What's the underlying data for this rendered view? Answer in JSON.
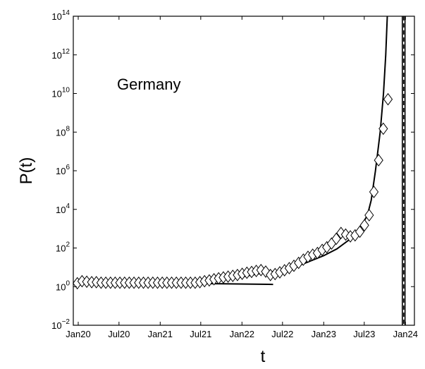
{
  "chart_data": {
    "type": "scatter",
    "title": "",
    "xlabel": "t",
    "ylabel": "P(t)",
    "annotation": "Germany",
    "x_scale": "time",
    "y_scale": "log",
    "xlim": [
      "2019-12-10",
      "2024-02-10"
    ],
    "ylim_exponent": [
      -2,
      14
    ],
    "x_ticks": [
      {
        "date": "2020-01-01",
        "label": "Jan20"
      },
      {
        "date": "2020-07-01",
        "label": "Jul20"
      },
      {
        "date": "2021-01-01",
        "label": "Jan21"
      },
      {
        "date": "2021-07-01",
        "label": "Jul21"
      },
      {
        "date": "2022-01-01",
        "label": "Jan22"
      },
      {
        "date": "2022-07-01",
        "label": "Jul22"
      },
      {
        "date": "2023-01-01",
        "label": "Jan23"
      },
      {
        "date": "2023-07-01",
        "label": "Jul23"
      },
      {
        "date": "2024-01-01",
        "label": "Jan24"
      }
    ],
    "y_ticks": [
      {
        "value": 0.01,
        "base": "10",
        "exp": "−2"
      },
      {
        "value": 1.0,
        "base": "10",
        "exp": "0"
      },
      {
        "value": 100.0,
        "base": "10",
        "exp": "2"
      },
      {
        "value": 10000.0,
        "base": "10",
        "exp": "4"
      },
      {
        "value": 1000000.0,
        "base": "10",
        "exp": "6"
      },
      {
        "value": 100000000.0,
        "base": "10",
        "exp": "8"
      },
      {
        "value": 10000000000.0,
        "base": "10",
        "exp": "10"
      },
      {
        "value": 1000000000000.0,
        "base": "10",
        "exp": "12"
      },
      {
        "value": 100000000000000.0,
        "base": "10",
        "exp": "14"
      }
    ],
    "markers": [
      [
        "2019-12-28",
        1.5
      ],
      [
        "2020-01-18",
        1.9
      ],
      [
        "2020-02-08",
        1.8
      ],
      [
        "2020-03-01",
        1.7
      ],
      [
        "2020-03-22",
        1.7
      ],
      [
        "2020-04-12",
        1.6
      ],
      [
        "2020-05-03",
        1.6
      ],
      [
        "2020-05-24",
        1.6
      ],
      [
        "2020-06-14",
        1.6
      ],
      [
        "2020-07-05",
        1.6
      ],
      [
        "2020-07-26",
        1.6
      ],
      [
        "2020-08-16",
        1.6
      ],
      [
        "2020-09-06",
        1.6
      ],
      [
        "2020-09-27",
        1.6
      ],
      [
        "2020-10-18",
        1.6
      ],
      [
        "2020-11-08",
        1.6
      ],
      [
        "2020-11-29",
        1.6
      ],
      [
        "2020-12-20",
        1.6
      ],
      [
        "2021-01-10",
        1.6
      ],
      [
        "2021-01-31",
        1.6
      ],
      [
        "2021-02-21",
        1.6
      ],
      [
        "2021-03-14",
        1.6
      ],
      [
        "2021-04-04",
        1.6
      ],
      [
        "2021-04-25",
        1.6
      ],
      [
        "2021-05-16",
        1.6
      ],
      [
        "2021-06-06",
        1.6
      ],
      [
        "2021-06-27",
        1.7
      ],
      [
        "2021-07-18",
        1.9
      ],
      [
        "2021-08-08",
        2.1
      ],
      [
        "2021-08-29",
        2.4
      ],
      [
        "2021-09-19",
        2.7
      ],
      [
        "2021-10-10",
        3.0
      ],
      [
        "2021-10-31",
        3.3
      ],
      [
        "2021-11-21",
        3.6
      ],
      [
        "2021-12-12",
        4.0
      ],
      [
        "2022-01-02",
        4.6
      ],
      [
        "2022-01-23",
        5.2
      ],
      [
        "2022-02-13",
        5.8
      ],
      [
        "2022-03-06",
        6.5
      ],
      [
        "2022-03-27",
        7.2
      ],
      [
        "2022-04-17",
        6.0
      ],
      [
        "2022-05-08",
        4.0
      ],
      [
        "2022-05-29",
        4.5
      ],
      [
        "2022-06-19",
        5.5
      ],
      [
        "2022-07-10",
        7
      ],
      [
        "2022-07-31",
        9
      ],
      [
        "2022-08-21",
        12
      ],
      [
        "2022-09-11",
        17
      ],
      [
        "2022-10-02",
        25
      ],
      [
        "2022-10-23",
        35
      ],
      [
        "2022-11-13",
        45
      ],
      [
        "2022-12-04",
        55
      ],
      [
        "2022-12-25",
        80
      ],
      [
        "2023-01-15",
        110
      ],
      [
        "2023-02-05",
        170
      ],
      [
        "2023-02-26",
        300
      ],
      [
        "2023-03-19",
        600
      ],
      [
        "2023-04-09",
        500
      ],
      [
        "2023-04-30",
        400
      ],
      [
        "2023-05-21",
        450
      ],
      [
        "2023-06-11",
        700
      ],
      [
        "2023-07-02",
        1500
      ],
      [
        "2023-07-23",
        5000
      ],
      [
        "2023-08-13",
        80000
      ],
      [
        "2023-09-03",
        3500000
      ],
      [
        "2023-09-24",
        150000000
      ],
      [
        "2023-10-15",
        5000000000
      ]
    ],
    "series": [
      {
        "style": "solid",
        "points": [
          [
            "2019-12-28",
            1.7
          ],
          [
            "2020-06-01",
            1.6
          ],
          [
            "2021-01-01",
            1.55
          ],
          [
            "2021-06-01",
            1.6
          ],
          [
            "2021-09-01",
            2.0
          ],
          [
            "2022-01-01",
            3.2
          ],
          [
            "2022-04-01",
            5
          ],
          [
            "2022-07-01",
            7
          ],
          [
            "2022-10-01",
            15
          ],
          [
            "2023-01-01",
            40
          ],
          [
            "2023-03-01",
            90
          ],
          [
            "2023-05-01",
            300
          ],
          [
            "2023-06-15",
            1200
          ],
          [
            "2023-07-15",
            5000
          ],
          [
            "2023-08-01",
            30000
          ],
          [
            "2023-08-20",
            1000000
          ],
          [
            "2023-09-10",
            100000000
          ],
          [
            "2023-09-25",
            10000000000
          ],
          [
            "2023-10-05",
            1000000000000
          ],
          [
            "2023-10-12",
            100000000000000
          ]
        ]
      },
      {
        "style": "solid",
        "points": [
          [
            "2019-12-28",
            1.7
          ],
          [
            "2022-05-20",
            1.3
          ]
        ]
      }
    ],
    "vertical_lines": [
      {
        "date": "2023-12-18",
        "style": "solid"
      },
      {
        "date": "2023-12-24",
        "style": "dashed"
      },
      {
        "date": "2023-12-30",
        "style": "solid"
      }
    ]
  }
}
